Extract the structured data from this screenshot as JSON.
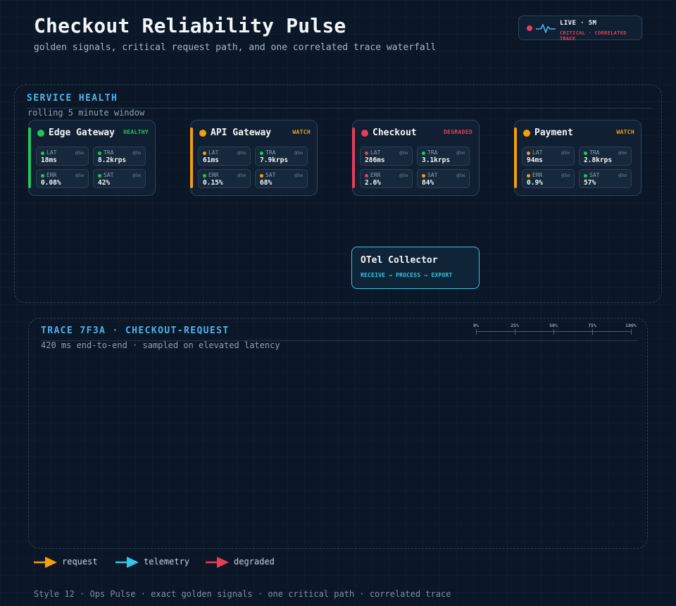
{
  "header": {
    "title": "Checkout Reliability Pulse",
    "subtitle": "golden signals, critical request path, and one correlated trace waterfall"
  },
  "live_badge": {
    "label": "LIVE · 5M",
    "sublabel": "CRITICAL · CORRELATED TRACE",
    "dot_color": "#e83d5a",
    "icon": "pulse-icon"
  },
  "service_health": {
    "title": "SERVICE HEALTH",
    "subtitle": "rolling 5 minute window",
    "services": [
      {
        "name": "Edge Gateway",
        "status": "HEALTHY",
        "status_color": "#22c55e",
        "metrics": [
          {
            "key": "LAT",
            "value": "18ms",
            "window": "@5m",
            "color": "#22c55e"
          },
          {
            "key": "TRA",
            "value": "8.2krps",
            "window": "@5m",
            "color": "#22c55e"
          },
          {
            "key": "ERR",
            "value": "0.08%",
            "window": "@5m",
            "color": "#22c55e"
          },
          {
            "key": "SAT",
            "value": "42%",
            "window": "@5m",
            "color": "#22c55e"
          }
        ]
      },
      {
        "name": "API Gateway",
        "status": "WATCH",
        "status_color": "#f59e0b",
        "metrics": [
          {
            "key": "LAT",
            "value": "61ms",
            "window": "@5m",
            "color": "#f59e0b"
          },
          {
            "key": "TRA",
            "value": "7.9krps",
            "window": "@5m",
            "color": "#22c55e"
          },
          {
            "key": "ERR",
            "value": "0.15%",
            "window": "@5m",
            "color": "#22c55e"
          },
          {
            "key": "SAT",
            "value": "68%",
            "window": "@5m",
            "color": "#f59e0b"
          }
        ]
      },
      {
        "name": "Checkout",
        "status": "DEGRADED",
        "status_color": "#e83d5a",
        "metrics": [
          {
            "key": "LAT",
            "value": "286ms",
            "window": "@5m",
            "color": "#e83d5a"
          },
          {
            "key": "TRA",
            "value": "3.1krps",
            "window": "@5m",
            "color": "#22c55e"
          },
          {
            "key": "ERR",
            "value": "2.6%",
            "window": "@5m",
            "color": "#e83d5a"
          },
          {
            "key": "SAT",
            "value": "84%",
            "window": "@5m",
            "color": "#f59e0b"
          }
        ]
      },
      {
        "name": "Payment",
        "status": "WATCH",
        "status_color": "#f59e0b",
        "metrics": [
          {
            "key": "LAT",
            "value": "94ms",
            "window": "@5m",
            "color": "#f59e0b"
          },
          {
            "key": "TRA",
            "value": "2.8krps",
            "window": "@5m",
            "color": "#22c55e"
          },
          {
            "key": "ERR",
            "value": "0.9%",
            "window": "@5m",
            "color": "#f59e0b"
          },
          {
            "key": "SAT",
            "value": "57%",
            "window": "@5m",
            "color": "#22c55e"
          }
        ]
      }
    ]
  },
  "collector": {
    "title": "OTel Collector",
    "subtitle": "RECEIVE → PROCESS → EXPORT"
  },
  "trace": {
    "title": "TRACE 7F3A · CHECKOUT-REQUEST",
    "subtitle": "420 ms end-to-end · sampled on elevated latency",
    "scale": [
      "0%",
      "25%",
      "50%",
      "75%",
      "100%"
    ]
  },
  "legend": [
    {
      "label": "request",
      "color": "#f59e0b"
    },
    {
      "label": "telemetry",
      "color": "#33c6e6"
    },
    {
      "label": "degraded",
      "color": "#e83d5a"
    }
  ],
  "footer": "Style 12 · Ops Pulse · exact golden signals · one critical path · correlated trace"
}
